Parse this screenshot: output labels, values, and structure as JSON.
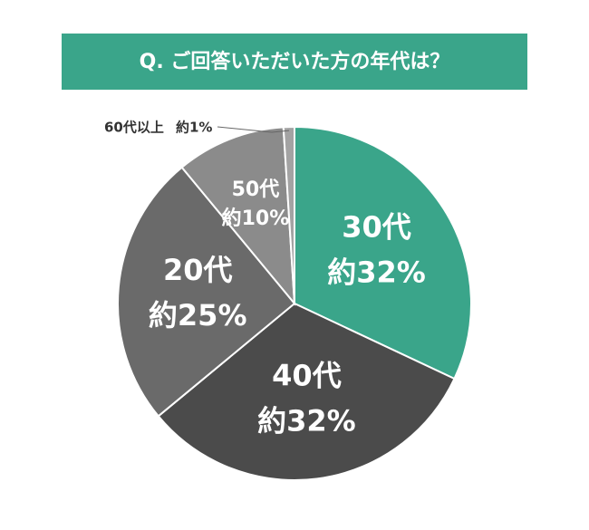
{
  "chart_data": {
    "type": "pie",
    "title": "Q. ご回答いただいた方の年代は？",
    "categories": [
      "30代",
      "40代",
      "20代",
      "50代",
      "60代以上"
    ],
    "values": [
      32,
      32,
      25,
      10,
      1
    ],
    "value_labels": [
      "約32%",
      "約32%",
      "約25%",
      "約10%",
      "約1%"
    ],
    "colors": [
      "#3aa58a",
      "#4b4b4b",
      "#6a6a6a",
      "#8b8b8b",
      "#a3a3a3"
    ]
  }
}
